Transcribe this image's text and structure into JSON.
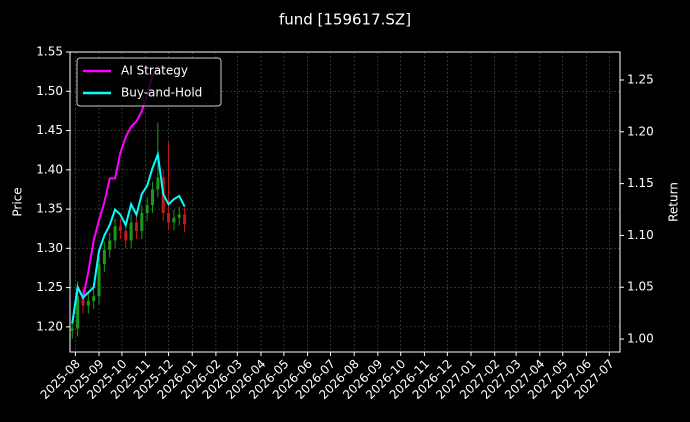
{
  "chart_data": {
    "type": "candlestick",
    "title": "fund [159617.SZ]",
    "ylabel": "Price",
    "y2label": "Return",
    "x": [
      "2025-07-28",
      "2025-08-04",
      "2025-08-11",
      "2025-08-18",
      "2025-08-25",
      "2025-09-01",
      "2025-09-08",
      "2025-09-15",
      "2025-09-22",
      "2025-09-29",
      "2025-10-06",
      "2025-10-13",
      "2025-10-20",
      "2025-10-27",
      "2025-11-03",
      "2025-11-10",
      "2025-11-17",
      "2025-11-24",
      "2025-12-01",
      "2025-12-08",
      "2025-12-15",
      "2025-12-22"
    ],
    "ohlc": {
      "open": [
        1.195,
        1.198,
        1.239,
        1.227,
        1.233,
        1.239,
        1.28,
        1.298,
        1.31,
        1.328,
        1.322,
        1.31,
        1.333,
        1.322,
        1.345,
        1.355,
        1.375,
        1.39,
        1.345,
        1.333,
        1.339,
        1.343
      ],
      "high": [
        1.208,
        1.258,
        1.25,
        1.243,
        1.249,
        1.29,
        1.308,
        1.32,
        1.338,
        1.338,
        1.332,
        1.343,
        1.343,
        1.355,
        1.365,
        1.385,
        1.46,
        1.4,
        1.435,
        1.349,
        1.353,
        1.353
      ],
      "low": [
        1.185,
        1.188,
        1.217,
        1.217,
        1.223,
        1.229,
        1.27,
        1.288,
        1.3,
        1.312,
        1.3,
        1.3,
        1.312,
        1.312,
        1.335,
        1.345,
        1.365,
        1.335,
        1.323,
        1.323,
        1.329,
        1.321
      ],
      "close": [
        1.198,
        1.239,
        1.227,
        1.233,
        1.239,
        1.28,
        1.298,
        1.31,
        1.328,
        1.322,
        1.31,
        1.333,
        1.322,
        1.345,
        1.355,
        1.375,
        1.39,
        1.345,
        1.333,
        1.339,
        1.343,
        1.331
      ]
    },
    "up_color": "#1a9a1a",
    "down_color": "#c41a1a",
    "series": [
      {
        "name": "AI Strategy",
        "color": "#ff00ff",
        "axis": "y2",
        "values": [
          1.015,
          1.05,
          1.04,
          1.065,
          1.095,
          1.115,
          1.132,
          1.155,
          1.155,
          1.18,
          1.195,
          1.205,
          1.21,
          1.22,
          1.235,
          1.255,
          1.262,
          1.264,
          null,
          null,
          null,
          null
        ]
      },
      {
        "name": "Buy-and-Hold",
        "color": "#00ffff",
        "axis": "y2",
        "values": [
          1.015,
          1.05,
          1.04,
          1.045,
          1.05,
          1.085,
          1.1,
          1.11,
          1.125,
          1.12,
          1.11,
          1.13,
          1.12,
          1.14,
          1.148,
          1.165,
          1.178,
          1.14,
          1.13,
          1.135,
          1.138,
          1.128
        ]
      }
    ],
    "xlim": [
      "2025-07-25",
      "2027-07-15"
    ],
    "xticks": [
      "2025-08",
      "2025-09",
      "2025-10",
      "2025-11",
      "2025-12",
      "2026-01",
      "2026-02",
      "2026-03",
      "2026-04",
      "2026-05",
      "2026-06",
      "2026-07",
      "2026-08",
      "2026-09",
      "2026-10",
      "2026-11",
      "2026-12",
      "2027-01",
      "2027-02",
      "2027-03",
      "2027-04",
      "2027-05",
      "2027-06",
      "2027-07"
    ],
    "ylim": [
      1.168,
      1.55
    ],
    "yticks": [
      {
        "value": 1.2,
        "label": "1.20"
      },
      {
        "value": 1.25,
        "label": "1.25"
      },
      {
        "value": 1.3,
        "label": "1.30"
      },
      {
        "value": 1.35,
        "label": "1.35"
      },
      {
        "value": 1.4,
        "label": "1.40"
      },
      {
        "value": 1.45,
        "label": "1.45"
      },
      {
        "value": 1.5,
        "label": "1.50"
      },
      {
        "value": 1.55,
        "label": "1.55"
      }
    ],
    "y2lim": [
      0.9875,
      1.277
    ],
    "y2ticks": [
      {
        "value": 1.0,
        "label": "1.00"
      },
      {
        "value": 1.05,
        "label": "1.05"
      },
      {
        "value": 1.1,
        "label": "1.10"
      },
      {
        "value": 1.15,
        "label": "1.15"
      },
      {
        "value": 1.2,
        "label": "1.20"
      },
      {
        "value": 1.25,
        "label": "1.25"
      }
    ],
    "grid": true,
    "legend": "upper left"
  }
}
